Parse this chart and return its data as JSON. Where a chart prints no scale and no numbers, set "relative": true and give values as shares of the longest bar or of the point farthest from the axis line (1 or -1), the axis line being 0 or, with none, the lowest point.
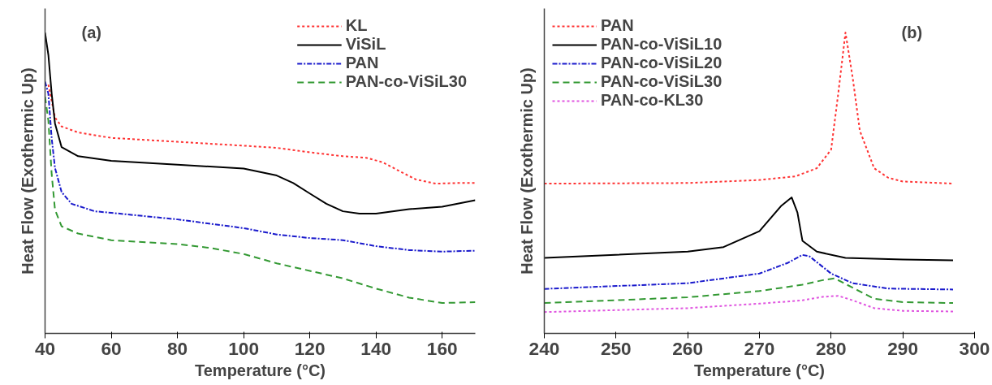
{
  "chart_data": [
    {
      "type": "line",
      "relative": true,
      "xlabel": "Temperature (°C)",
      "ylabel": "Heat Flow (Exothermic Up)",
      "annotations": [
        "(a)"
      ],
      "xlim": [
        40,
        170
      ],
      "xticks": [
        40,
        60,
        80,
        100,
        120,
        140,
        160
      ],
      "legend": "top right",
      "grid": false,
      "series": [
        {
          "name": "KL",
          "color": "#ff3333",
          "line_style": "dotted",
          "x": [
            41,
            43,
            45,
            50,
            60,
            80,
            100,
            110,
            120,
            130,
            137,
            142,
            147,
            152,
            158,
            165,
            170
          ],
          "values": [
            0.827,
            0.718,
            0.688,
            0.668,
            0.65,
            0.637,
            0.624,
            0.617,
            0.602,
            0.589,
            0.584,
            0.569,
            0.54,
            0.512,
            0.498,
            0.5,
            0.5
          ]
        },
        {
          "name": "ViSiL",
          "color": "#000000",
          "line_style": "solid",
          "x": [
            40,
            41,
            42,
            43,
            45,
            50,
            60,
            80,
            100,
            110,
            115,
            120,
            125,
            130,
            135,
            140,
            150,
            160,
            170
          ],
          "values": [
            1.0,
            0.926,
            0.797,
            0.698,
            0.619,
            0.589,
            0.574,
            0.561,
            0.548,
            0.525,
            0.5,
            0.465,
            0.431,
            0.406,
            0.398,
            0.398,
            0.413,
            0.421,
            0.443
          ]
        },
        {
          "name": "PAN",
          "color": "#1a1acc",
          "line_style": "dashdot",
          "x": [
            40,
            41,
            42,
            43,
            45,
            48,
            55,
            60,
            80,
            100,
            110,
            120,
            130,
            140,
            150,
            160,
            170
          ],
          "values": [
            0.837,
            0.797,
            0.649,
            0.55,
            0.47,
            0.431,
            0.406,
            0.401,
            0.379,
            0.35,
            0.329,
            0.317,
            0.31,
            0.29,
            0.277,
            0.272,
            0.275
          ]
        },
        {
          "name": "PAN-co-ViSiL30",
          "color": "#339933",
          "line_style": "dashed",
          "x": [
            40,
            41,
            42,
            43,
            45,
            50,
            60,
            80,
            90,
            100,
            110,
            120,
            130,
            140,
            150,
            160,
            170
          ],
          "values": [
            0.787,
            0.708,
            0.53,
            0.411,
            0.356,
            0.332,
            0.31,
            0.297,
            0.284,
            0.264,
            0.233,
            0.208,
            0.183,
            0.149,
            0.119,
            0.101,
            0.104
          ]
        }
      ]
    },
    {
      "type": "line",
      "relative": true,
      "xlabel": "Temperature (°C)",
      "ylabel": "Heat Flow (Exothermic Up)",
      "annotations": [
        "(b)"
      ],
      "xlim": [
        240,
        300
      ],
      "xticks": [
        240,
        250,
        260,
        270,
        280,
        290,
        300
      ],
      "legend": "top left",
      "grid": false,
      "series": [
        {
          "name": "PAN",
          "color": "#ff3333",
          "line_style": "dotted",
          "x": [
            240,
            260,
            270,
            275,
            278,
            280,
            281,
            282,
            283,
            284,
            286,
            288,
            290,
            297
          ],
          "values": [
            0.498,
            0.5,
            0.51,
            0.522,
            0.549,
            0.611,
            0.799,
            1.0,
            0.851,
            0.674,
            0.549,
            0.517,
            0.505,
            0.498
          ]
        },
        {
          "name": "PAN-co-ViSiL10",
          "color": "#000000",
          "line_style": "solid",
          "x": [
            240,
            260,
            265,
            270,
            273,
            274.5,
            275.3,
            276,
            278,
            282,
            290,
            297
          ],
          "values": [
            0.251,
            0.272,
            0.287,
            0.34,
            0.423,
            0.452,
            0.402,
            0.308,
            0.272,
            0.251,
            0.246,
            0.243
          ]
        },
        {
          "name": "PAN-co-ViSiL20",
          "color": "#1a1acc",
          "line_style": "dashdot",
          "x": [
            240,
            260,
            270,
            274,
            276,
            277,
            280,
            283,
            288,
            297
          ],
          "values": [
            0.148,
            0.167,
            0.199,
            0.235,
            0.261,
            0.256,
            0.199,
            0.167,
            0.149,
            0.146
          ]
        },
        {
          "name": "PAN-co-ViSiL30",
          "color": "#339933",
          "line_style": "dashed",
          "x": [
            240,
            260,
            270,
            276,
            279,
            280.5,
            283,
            286,
            290,
            297
          ],
          "values": [
            0.101,
            0.12,
            0.141,
            0.162,
            0.178,
            0.183,
            0.152,
            0.115,
            0.104,
            0.101
          ]
        },
        {
          "name": "PAN-co-KL30",
          "color": "#e055e0",
          "line_style": "dotted",
          "x": [
            240,
            260,
            270,
            276,
            279,
            281,
            283,
            286,
            290,
            297
          ],
          "values": [
            0.071,
            0.084,
            0.099,
            0.11,
            0.122,
            0.125,
            0.11,
            0.084,
            0.075,
            0.073
          ]
        }
      ]
    }
  ]
}
